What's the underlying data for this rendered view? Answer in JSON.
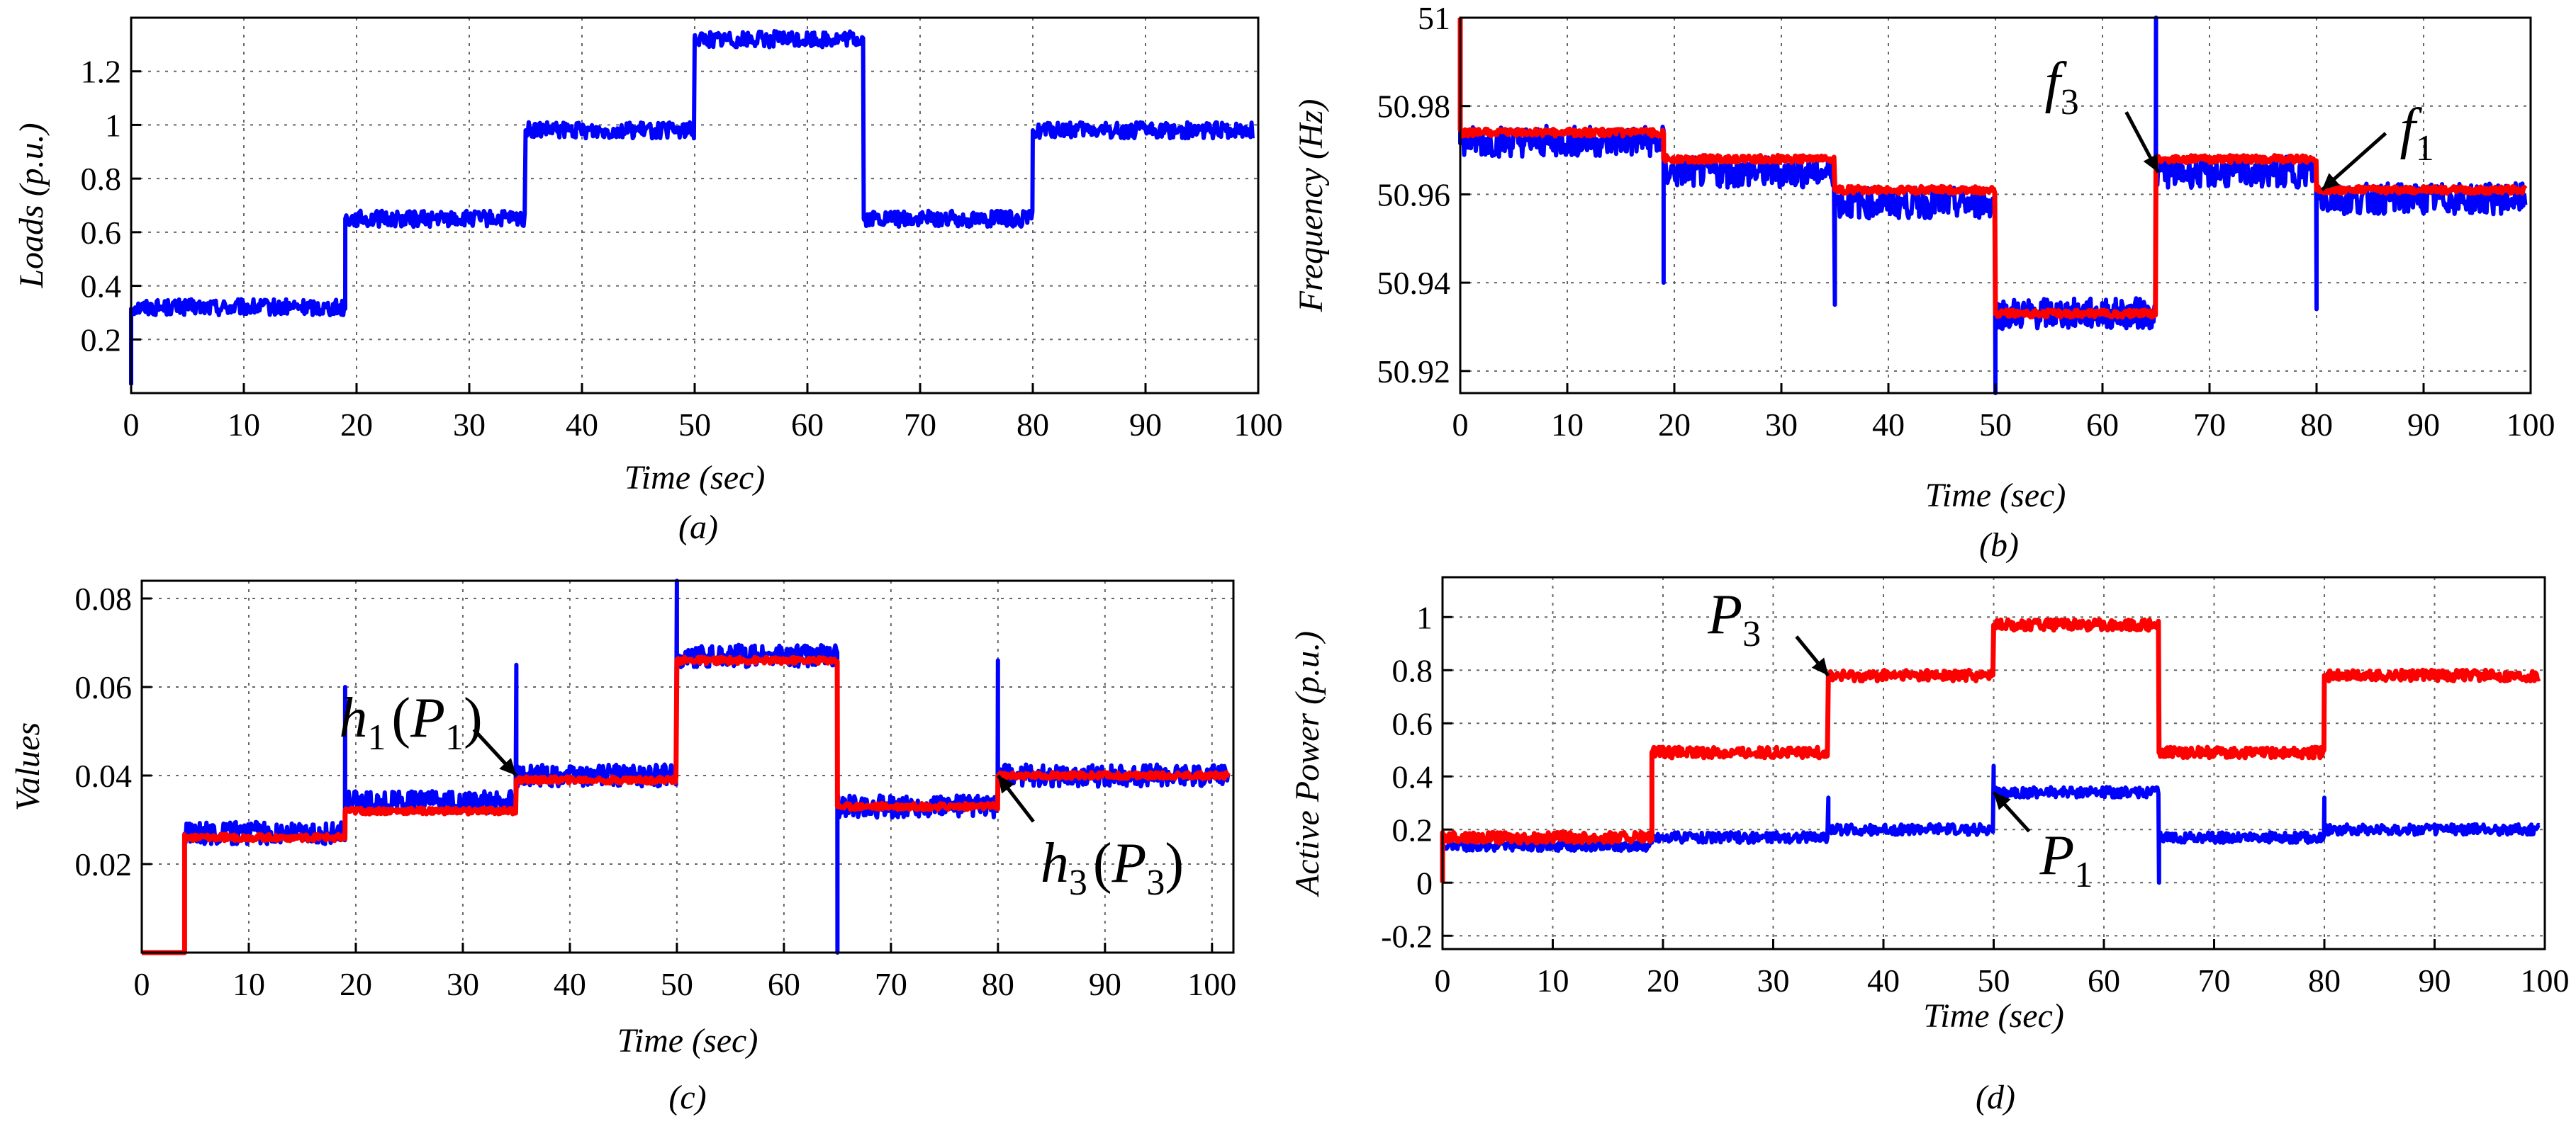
{
  "chart_data": [
    {
      "id": "a",
      "type": "line",
      "caption": "(a)",
      "xlabel": "Time (sec)",
      "ylabel": "Loads (p.u.)",
      "xlim": [
        0,
        100
      ],
      "ylim": [
        0,
        1.4
      ],
      "xticks": [
        0,
        10,
        20,
        30,
        40,
        50,
        60,
        70,
        80,
        90,
        100
      ],
      "xticklabels": [
        "0",
        "10",
        "20",
        "30",
        "40",
        "50",
        "60",
        "70",
        "80",
        "90",
        "100"
      ],
      "yticks": [
        0.2,
        0.4,
        0.6,
        0.8,
        1.0,
        1.2
      ],
      "yticklabels": [
        "0.2",
        "0.4",
        "0.6",
        "0.8",
        "1",
        "1.2"
      ],
      "grid": true,
      "series": [
        {
          "name": "Load",
          "color": "#0000ff",
          "noise": 0.03,
          "steps": [
            [
              0,
              0.32
            ],
            [
              19,
              0.65
            ],
            [
              35,
              0.98
            ],
            [
              50,
              1.32
            ],
            [
              65,
              0.65
            ],
            [
              80,
              0.98
            ]
          ],
          "start": 0.03,
          "spikes": []
        }
      ],
      "annotations": []
    },
    {
      "id": "b",
      "type": "line",
      "caption": "(b)",
      "xlabel": "Time (sec)",
      "ylabel": "Frequency (Hz)",
      "xlim": [
        0,
        100
      ],
      "ylim": [
        50.915,
        51.0
      ],
      "xticks": [
        0,
        10,
        20,
        30,
        40,
        50,
        60,
        70,
        80,
        90,
        100
      ],
      "xticklabels": [
        "0",
        "10",
        "20",
        "30",
        "40",
        "50",
        "60",
        "70",
        "80",
        "90",
        "100"
      ],
      "yticks": [
        50.92,
        50.94,
        50.96,
        50.98,
        51.0
      ],
      "yticklabels": [
        "50.92",
        "50.94",
        "50.96",
        "50.98",
        "51"
      ],
      "grid": true,
      "series": [
        {
          "name": "f3",
          "color": "#0000ff",
          "noise": 0.0035,
          "steps": [
            [
              0,
              50.972
            ],
            [
              19,
              50.965
            ],
            [
              35,
              50.958
            ],
            [
              50,
              50.933
            ],
            [
              65,
              50.965
            ],
            [
              80,
              50.959
            ]
          ],
          "start": 50.975,
          "spikes": [
            [
              19,
              50.94
            ],
            [
              35,
              50.935
            ],
            [
              50,
              50.915
            ],
            [
              65,
              51.0
            ],
            [
              80,
              50.934
            ]
          ]
        },
        {
          "name": "f1",
          "color": "#ff0000",
          "noise": 0.0008,
          "steps": [
            [
              0,
              50.974
            ],
            [
              19,
              50.968
            ],
            [
              35,
              50.961
            ],
            [
              50,
              50.933
            ],
            [
              65,
              50.968
            ],
            [
              80,
              50.961
            ]
          ],
          "start": 51.0,
          "spikes": []
        }
      ],
      "annotations": [
        {
          "base": "f",
          "sub": "1",
          "series": "f1",
          "at_x": 80.5
        },
        {
          "base": "f",
          "sub": "3",
          "series": "f3",
          "at_x": 65.2
        }
      ]
    },
    {
      "id": "c",
      "type": "line",
      "caption": "(c)",
      "xlabel": "Time (sec)",
      "ylabel": "Values",
      "xlim": [
        0,
        102
      ],
      "ylim": [
        0,
        0.084
      ],
      "xticks": [
        0,
        10,
        20,
        30,
        40,
        50,
        60,
        70,
        80,
        90,
        100
      ],
      "xticklabels": [
        "0",
        "10",
        "20",
        "30",
        "40",
        "50",
        "60",
        "70",
        "80",
        "90",
        "100"
      ],
      "yticks": [
        0.02,
        0.04,
        0.06,
        0.08
      ],
      "yticklabels": [
        "0.02",
        "0.04",
        "0.06",
        "0.08"
      ],
      "grid": true,
      "series": [
        {
          "name": "h1(P1)",
          "color": "#0000ff",
          "noise": 0.0025,
          "steps": [
            [
              4,
              0.027
            ],
            [
              19,
              0.034
            ],
            [
              35,
              0.04
            ],
            [
              50,
              0.067
            ],
            [
              65,
              0.033
            ],
            [
              80,
              0.04
            ]
          ],
          "start": 0.0,
          "spikes": [
            [
              19,
              0.06
            ],
            [
              35,
              0.065
            ],
            [
              50,
              0.084
            ],
            [
              65,
              0.0
            ],
            [
              80,
              0.066
            ]
          ]
        },
        {
          "name": "h3(P3)",
          "color": "#ff0000",
          "noise": 0.0007,
          "steps": [
            [
              4,
              0.026
            ],
            [
              19,
              0.032
            ],
            [
              35,
              0.039
            ],
            [
              50,
              0.066
            ],
            [
              65,
              0.033
            ],
            [
              80,
              0.04
            ]
          ],
          "start": 0.0,
          "spikes": []
        }
      ],
      "annotations": [
        {
          "base": "h",
          "sub": "1",
          "arg": "P",
          "argsub": "1",
          "series": "h1(P1)",
          "at_x": 35
        },
        {
          "base": "h",
          "sub": "3",
          "arg": "P",
          "argsub": "3",
          "series": "h3(P3)",
          "at_x": 80
        }
      ]
    },
    {
      "id": "d",
      "type": "line",
      "caption": "(d)",
      "xlabel": "Time (sec)",
      "ylabel": "Active Power (p.u.)",
      "xlim": [
        0,
        100
      ],
      "ylim": [
        -0.25,
        1.15
      ],
      "xticks": [
        0,
        10,
        20,
        30,
        40,
        50,
        60,
        70,
        80,
        90,
        100
      ],
      "xticklabels": [
        "0",
        "10",
        "20",
        "30",
        "40",
        "50",
        "60",
        "70",
        "80",
        "90",
        "100"
      ],
      "yticks": [
        -0.2,
        0,
        0.2,
        0.4,
        0.6,
        0.8,
        1.0
      ],
      "yticklabels": [
        "-0.2",
        "0",
        "0.2",
        "0.4",
        "0.6",
        "0.8",
        "1"
      ],
      "grid": true,
      "series": [
        {
          "name": "P1",
          "color": "#0000ff",
          "noise": 0.02,
          "steps": [
            [
              0,
              0.14
            ],
            [
              19,
              0.17
            ],
            [
              35,
              0.2
            ],
            [
              50,
              0.34
            ],
            [
              65,
              0.17
            ],
            [
              80,
              0.2
            ]
          ],
          "start": 0.14,
          "spikes": [
            [
              35,
              0.32
            ],
            [
              50,
              0.44
            ],
            [
              65,
              0.0
            ],
            [
              80,
              0.32
            ]
          ]
        },
        {
          "name": "P3",
          "color": "#ff0000",
          "noise": 0.02,
          "steps": [
            [
              0,
              0.17
            ],
            [
              19,
              0.49
            ],
            [
              35,
              0.78
            ],
            [
              50,
              0.97
            ],
            [
              65,
              0.49
            ],
            [
              80,
              0.78
            ]
          ],
          "start": 0.0,
          "spikes": []
        }
      ],
      "annotations": [
        {
          "base": "P",
          "sub": "3",
          "series": "P3",
          "at_x": 35
        },
        {
          "base": "P",
          "sub": "1",
          "series": "P1",
          "at_x": 50
        }
      ]
    }
  ]
}
